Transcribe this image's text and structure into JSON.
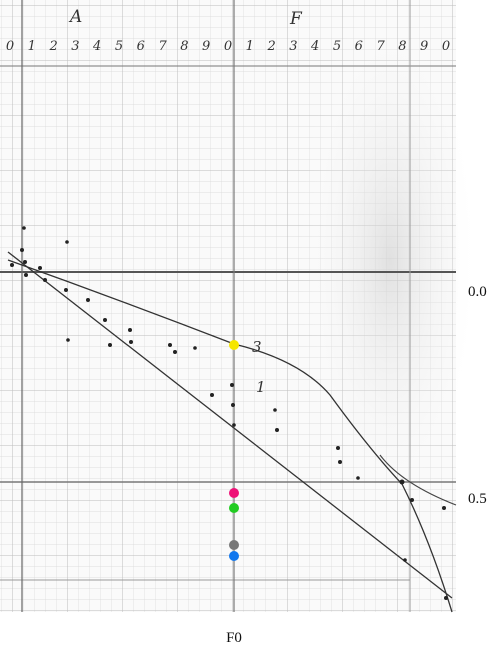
{
  "labels": {
    "axis_a": "A",
    "axis_f": "F",
    "curve_3": "3",
    "curve_1": "1",
    "right_top": "0.0",
    "right_bottom": "0.5",
    "bottom": "F0"
  },
  "top_scale": [
    "0",
    "1",
    "2",
    "3",
    "4",
    "5",
    "6",
    "7",
    "8",
    "9",
    "0",
    "1",
    "2",
    "3",
    "4",
    "5",
    "6",
    "7",
    "8",
    "9",
    "0"
  ]
}
